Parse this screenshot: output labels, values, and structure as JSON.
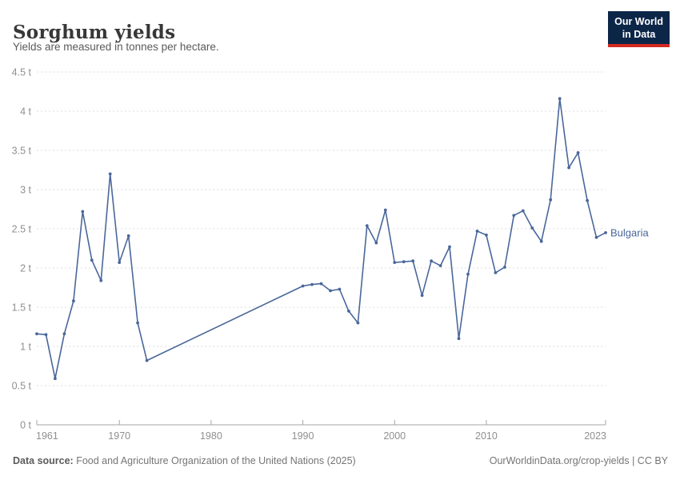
{
  "header": {
    "title": "Sorghum yields",
    "subtitle": "Yields are measured in tonnes per hectare.",
    "logo": {
      "line1": "Our World",
      "line2": "in Data"
    }
  },
  "footer": {
    "source_label": "Data source:",
    "source_text": " Food and Agriculture Organization of the United Nations (2025)",
    "credit_link": "OurWorldinData.org/crop-yields",
    "credit_rest": " | CC BY"
  },
  "colors": {
    "line": "#4a679b",
    "grid": "#dcdcdc",
    "axis": "#a5a5a5",
    "tick": "#8f8f8f",
    "title": "#373737",
    "subtitle": "#5a5a5a",
    "footer": "#757575",
    "logo_bg": "#0c2648",
    "logo_red": "#d42a20"
  },
  "chart_data": {
    "type": "line",
    "title": "Sorghum yields",
    "ylabel": "tonnes per hectare",
    "unit": "t",
    "x_domain": [
      1961,
      2023
    ],
    "y_domain": [
      0,
      4.5
    ],
    "yticks": [
      0,
      0.5,
      1,
      1.5,
      2,
      2.5,
      3,
      3.5,
      4,
      4.5
    ],
    "xticks": [
      1961,
      1970,
      1980,
      1990,
      2000,
      2010,
      2023
    ],
    "grid": true,
    "legend": "end-of-line-label",
    "note": "No data between 1974 and 1989; line connects 1973 directly to 1990",
    "series": [
      {
        "name": "Bulgaria",
        "points": [
          [
            1961,
            1.16
          ],
          [
            1962,
            1.15
          ],
          [
            1963,
            0.59
          ],
          [
            1964,
            1.16
          ],
          [
            1965,
            1.58
          ],
          [
            1966,
            2.72
          ],
          [
            1967,
            2.1
          ],
          [
            1968,
            1.84
          ],
          [
            1969,
            3.2
          ],
          [
            1970,
            2.07
          ],
          [
            1971,
            2.41
          ],
          [
            1972,
            1.3
          ],
          [
            1973,
            0.82
          ],
          [
            1990,
            1.77
          ],
          [
            1991,
            1.79
          ],
          [
            1992,
            1.8
          ],
          [
            1993,
            1.71
          ],
          [
            1994,
            1.73
          ],
          [
            1995,
            1.45
          ],
          [
            1996,
            1.3
          ],
          [
            1997,
            2.54
          ],
          [
            1998,
            2.32
          ],
          [
            1999,
            2.74
          ],
          [
            2000,
            2.07
          ],
          [
            2001,
            2.08
          ],
          [
            2002,
            2.09
          ],
          [
            2003,
            1.65
          ],
          [
            2004,
            2.09
          ],
          [
            2005,
            2.03
          ],
          [
            2006,
            2.27
          ],
          [
            2007,
            1.1
          ],
          [
            2008,
            1.92
          ],
          [
            2009,
            2.47
          ],
          [
            2010,
            2.42
          ],
          [
            2011,
            1.94
          ],
          [
            2012,
            2.01
          ],
          [
            2013,
            2.67
          ],
          [
            2014,
            2.73
          ],
          [
            2015,
            2.51
          ],
          [
            2016,
            2.34
          ],
          [
            2017,
            2.87
          ],
          [
            2018,
            4.16
          ],
          [
            2019,
            3.28
          ],
          [
            2020,
            3.47
          ],
          [
            2021,
            2.86
          ],
          [
            2022,
            2.39
          ],
          [
            2023,
            2.45
          ]
        ]
      }
    ]
  }
}
